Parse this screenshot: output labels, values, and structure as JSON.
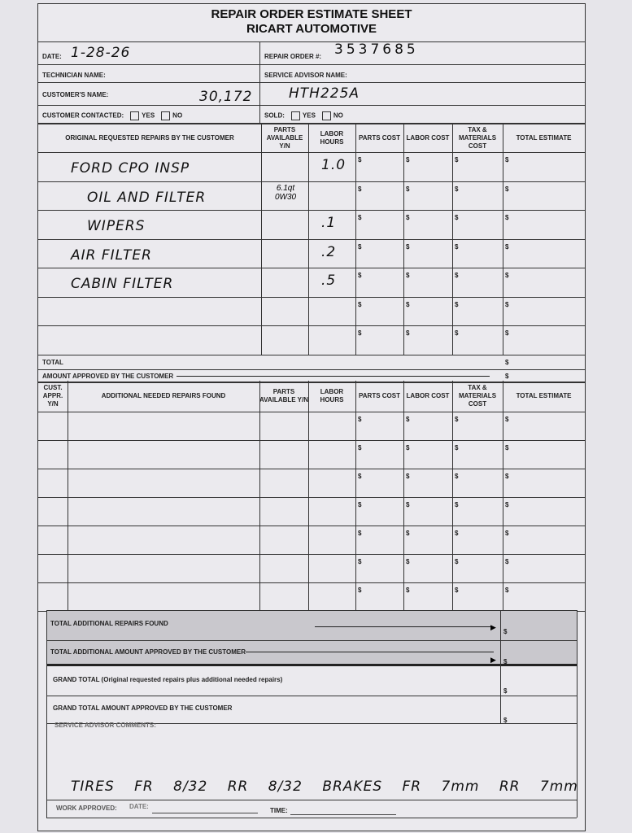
{
  "header": {
    "title": "REPAIR ORDER ESTIMATE SHEET",
    "subtitle": "RICART AUTOMOTIVE"
  },
  "fields": {
    "date_label": "DATE:",
    "date_value": "1-28-26",
    "repair_order_label": "REPAIR ORDER #:",
    "repair_order_value": "3537685",
    "technician_label": "TECHNICIAN NAME:",
    "service_advisor_label": "SERVICE ADVISOR NAME:",
    "customer_label": "CUSTOMER'S NAME:",
    "customer_value": "30,172",
    "customer_value2": "HTH225A",
    "contacted_label": "CUSTOMER CONTACTED:",
    "yes": "YES",
    "no": "NO",
    "sold_label": "SOLD:"
  },
  "original": {
    "headers": [
      "ORIGINAL REQUESTED REPAIRS BY THE CUSTOMER",
      "PARTS AVAILABLE Y/N",
      "LABOR HOURS",
      "PARTS COST",
      "LABOR COST",
      "TAX & MATERIALS COST",
      "TOTAL ESTIMATE"
    ],
    "rows": [
      {
        "desc": "FORD CPO INSP",
        "parts": "",
        "hours": "1.0"
      },
      {
        "desc": "OIL AND FILTER",
        "parts": "6.1qt 0W30",
        "hours": ""
      },
      {
        "desc": "WIPERS",
        "parts": "",
        "hours": ".1"
      },
      {
        "desc": "AIR FILTER",
        "parts": "",
        "hours": ".2"
      },
      {
        "desc": "CABIN FILTER",
        "parts": "",
        "hours": ".5"
      },
      {
        "desc": "",
        "parts": "",
        "hours": ""
      },
      {
        "desc": "",
        "parts": "",
        "hours": ""
      }
    ],
    "total_label": "TOTAL",
    "approved_label": "AMOUNT APPROVED BY THE CUSTOMER"
  },
  "additional": {
    "headers": [
      "CUST. APPR. Y/N",
      "ADDITIONAL NEEDED REPAIRS FOUND",
      "PARTS AVAILABLE Y/N",
      "LABOR HOURS",
      "PARTS COST",
      "LABOR COST",
      "TAX & MATERIALS COST",
      "TOTAL ESTIMATE"
    ],
    "row_count": 7
  },
  "totals": {
    "total_additional": "TOTAL ADDITIONAL REPAIRS FOUND",
    "total_additional_approved": "TOTAL ADDITIONAL AMOUNT APPROVED BY THE CUSTOMER",
    "grand_total": "GRAND TOTAL (Original requested repairs plus additional needed repairs)",
    "grand_total_approved": "GRAND TOTAL AMOUNT APPROVED BY THE CUSTOMER",
    "currency": "$"
  },
  "comments": {
    "label": "SERVICE ADVISOR COMMENTS:",
    "text": "TIRES FR 8/32 RR 8/32 BRAKES FR 7mm RR 7mm"
  },
  "footer": {
    "work_approved": "WORK APPROVED:",
    "date": "DATE:",
    "time": "TIME:"
  }
}
